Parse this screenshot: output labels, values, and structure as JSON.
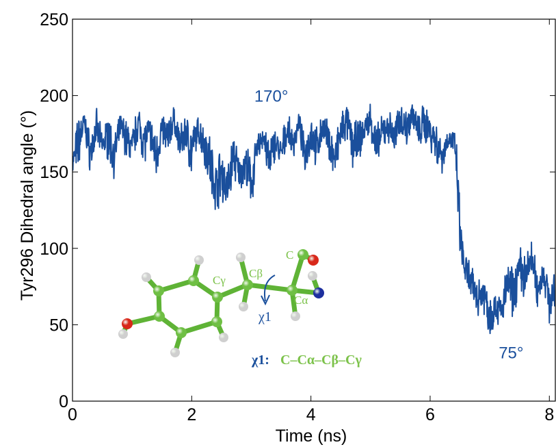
{
  "chart_data": {
    "type": "line",
    "xlabel": "Time (ns)",
    "ylabel": "Tyr296 Dihedral angle (°)",
    "xlim": [
      0,
      8.1
    ],
    "ylim": [
      0,
      250
    ],
    "xticks": [
      0,
      2,
      4,
      6,
      8
    ],
    "yticks": [
      0,
      50,
      100,
      150,
      200,
      250
    ],
    "grid": false,
    "series": [
      {
        "color": "#1a4f9c",
        "x": [
          0.0,
          0.1,
          0.2,
          0.3,
          0.4,
          0.5,
          0.6,
          0.7,
          0.8,
          0.9,
          1.0,
          1.1,
          1.2,
          1.3,
          1.4,
          1.5,
          1.6,
          1.7,
          1.8,
          1.9,
          2.0,
          2.1,
          2.2,
          2.3,
          2.4,
          2.5,
          2.6,
          2.7,
          2.8,
          2.9,
          3.0,
          3.1,
          3.2,
          3.3,
          3.4,
          3.5,
          3.6,
          3.7,
          3.8,
          3.9,
          4.0,
          4.1,
          4.2,
          4.3,
          4.4,
          4.5,
          4.6,
          4.7,
          4.8,
          4.9,
          5.0,
          5.1,
          5.2,
          5.3,
          5.4,
          5.5,
          5.6,
          5.7,
          5.8,
          5.9,
          6.0,
          6.1,
          6.2,
          6.3,
          6.4,
          6.45,
          6.5,
          6.55,
          6.6,
          6.7,
          6.8,
          6.9,
          7.0,
          7.1,
          7.2,
          7.3,
          7.4,
          7.5,
          7.6,
          7.7,
          7.8,
          7.9,
          8.0,
          8.1
        ],
        "y": [
          155,
          170,
          182,
          162,
          178,
          168,
          174,
          160,
          180,
          172,
          165,
          183,
          170,
          176,
          160,
          178,
          172,
          185,
          168,
          176,
          162,
          178,
          170,
          158,
          140,
          150,
          138,
          162,
          148,
          155,
          142,
          165,
          175,
          155,
          170,
          160,
          178,
          168,
          182,
          160,
          176,
          165,
          180,
          170,
          158,
          175,
          183,
          168,
          170,
          178,
          185,
          165,
          176,
          180,
          172,
          186,
          178,
          190,
          175,
          182,
          178,
          170,
          160,
          172,
          170,
          150,
          110,
          92,
          85,
          75,
          68,
          72,
          55,
          62,
          58,
          78,
          70,
          88,
          80,
          95,
          72,
          85,
          65,
          70
        ],
        "noise": [
          6,
          14,
          6,
          10,
          10,
          6,
          12,
          10,
          6,
          10,
          10,
          8,
          12,
          8,
          12,
          8,
          10,
          6,
          8,
          10,
          14,
          6,
          10,
          14,
          12,
          14,
          12,
          12,
          8,
          10,
          14,
          6,
          10,
          12,
          8,
          10,
          8,
          8,
          6,
          8,
          10,
          10,
          6,
          10,
          10,
          12,
          8,
          12,
          10,
          8,
          8,
          12,
          8,
          8,
          10,
          8,
          10,
          6,
          10,
          10,
          10,
          12,
          8,
          6,
          8,
          12,
          14,
          10,
          10,
          10,
          10,
          10,
          12,
          8,
          10,
          10,
          12,
          10,
          12,
          10,
          10,
          8,
          10,
          10
        ]
      }
    ],
    "annotations": [
      {
        "text": "170°",
        "x": 3.05,
        "y": 196
      },
      {
        "text": "75°",
        "x": 7.15,
        "y": 28
      }
    ]
  },
  "inset": {
    "atoms": {
      "c_gamma": "Cγ",
      "c_beta": "Cβ",
      "c": "C",
      "c_alpha": "Cα"
    },
    "chi_label": "χ1",
    "definition_prefix": "χ1:",
    "definition_formula": "C–Cα–Cβ–Cγ",
    "colors": {
      "carbon": "#6fbf44",
      "bond": "#5fb336",
      "hydrogen": "#cfcfcf",
      "oxygen": "#d8281a",
      "nitrogen": "#1d2f9e",
      "label_green": "#7cc24a",
      "label_blue": "#1a4f9c"
    }
  }
}
